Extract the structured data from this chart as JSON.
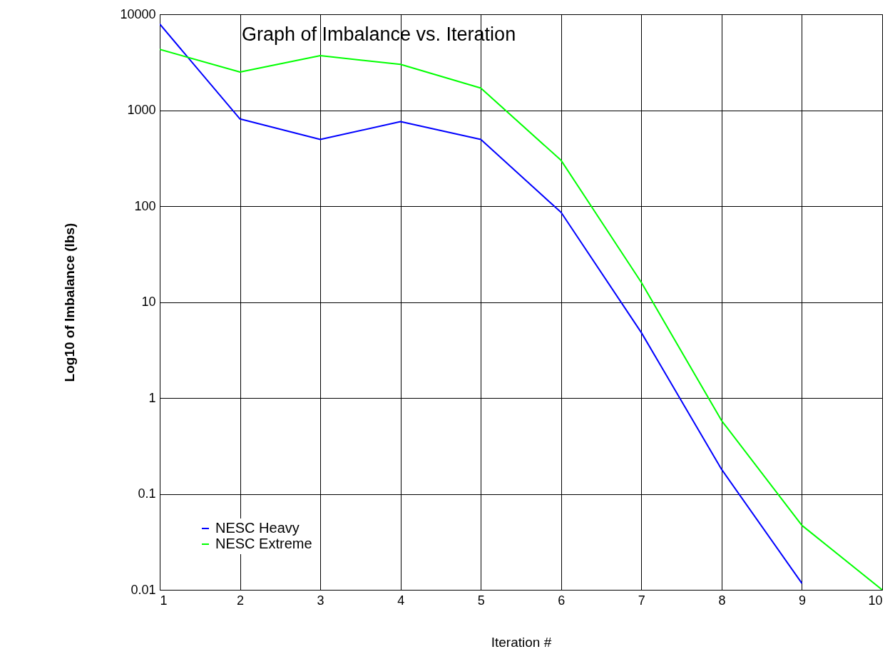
{
  "chart_data": {
    "type": "line",
    "title": "Graph of Imbalance vs. Iteration",
    "xlabel": "Iteration #",
    "ylabel": "Log10 of Imbalance (lbs)",
    "x": [
      1,
      2,
      3,
      4,
      5,
      6,
      7,
      8,
      9,
      10
    ],
    "series": [
      {
        "name": "NESC Heavy",
        "color": "#0000ff",
        "x": [
          1,
          2,
          3,
          4,
          5,
          6,
          7,
          8,
          9
        ],
        "values": [
          7900,
          810,
          495,
          760,
          495,
          86,
          4.8,
          0.18,
          0.0117
        ]
      },
      {
        "name": "NESC Extreme",
        "color": "#00ff00",
        "values": [
          4300,
          2500,
          3700,
          3000,
          1700,
          300,
          16,
          0.58,
          0.047,
          0.01
        ]
      }
    ],
    "xlim": [
      1,
      10
    ],
    "xticks": [
      1,
      2,
      3,
      4,
      5,
      6,
      7,
      8,
      9,
      10
    ],
    "ylim": [
      0.01,
      10000
    ],
    "yticks": [
      0.01,
      0.1,
      1,
      10,
      100,
      1000,
      10000
    ],
    "log": "y",
    "grid": true,
    "legend": "bottom left",
    "marker": "none",
    "line_style": "solid"
  }
}
